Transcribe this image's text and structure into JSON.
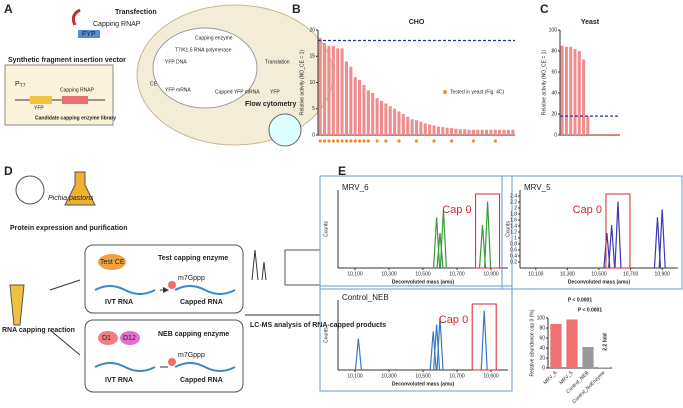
{
  "panels": {
    "a": "A",
    "b": "B",
    "c": "C",
    "d": "D",
    "e": "E"
  },
  "diagram_a": {
    "transfection": "Transfection",
    "capping_rnap": "Capping RNAP",
    "fyp": "FYP",
    "capping_enzyme": "Capping enzyme",
    "polymerase": "T7/K1.5 RNA polymerase",
    "yfp_dna": "YFP DNA",
    "vector": "Synthetic fragment insertion vector",
    "translation": "Translation",
    "yfp": "YFP",
    "capped_mrna": "Capped YFP mRNA",
    "yfp_mrna": "YFP mRNA",
    "ce": "CE",
    "flow": "Flow cytometry",
    "library": "Candidate capping enzyme library",
    "promoter": "P",
    "promoter_sub": "T7",
    "vector_yfp": "YFP",
    "vector_rnap": "Capping RNAP"
  },
  "diagram_d": {
    "organism": "Pichia pastoris",
    "expression": "Protein expression and purification",
    "reaction": "RNA capping reaction",
    "test_ce": "Test CE",
    "test_enzyme": "Test capping enzyme",
    "ivt1": "IVT RNA",
    "cap1": "m7Gppp",
    "capped1": "Capped RNA",
    "d1": "D1",
    "d12": "D12",
    "neb_enzyme": "NEB capping enzyme",
    "ivt2": "IVT RNA",
    "cap2": "m7Gppp",
    "capped2": "Capped RNA",
    "lcms": "LC-MS analysis of RNA-capped products"
  },
  "chart_data": [
    {
      "type": "bar",
      "title": "CHO",
      "ylabel": "Relative activity (NO_CE = 1)",
      "color": "#f08c8c",
      "ylim": [
        0,
        20
      ],
      "yticks": [
        0,
        5,
        10,
        15,
        20
      ],
      "reference_line": 18,
      "legend": "Tested in yeast (Fig. 4C)",
      "marker_color": "#f08c2c",
      "tested": [
        0,
        1,
        2,
        3,
        4,
        5,
        6,
        7,
        8,
        9,
        10,
        11,
        13,
        15,
        18,
        22,
        26,
        30,
        35,
        40
      ],
      "categories": [
        null,
        null,
        null,
        null,
        null,
        null,
        null,
        null,
        null,
        null,
        null,
        null,
        null,
        null,
        null,
        null,
        null,
        null,
        null,
        null,
        null,
        null,
        null,
        null,
        null,
        null,
        null,
        null,
        null,
        null,
        null,
        null,
        null,
        null,
        null,
        null,
        null,
        null,
        null,
        null,
        null,
        null,
        null,
        null,
        null
      ],
      "values": [
        18.5,
        17.5,
        17,
        17,
        16.5,
        16.5,
        14,
        13,
        11,
        10.5,
        9.5,
        8.5,
        8,
        7,
        6.5,
        6,
        5.5,
        5,
        4.5,
        4,
        3.5,
        3,
        2.8,
        2.5,
        2.2,
        2,
        1.8,
        1.6,
        1.5,
        1.4,
        1.3,
        1.2,
        1.1,
        1.1,
        1,
        1,
        1,
        1,
        1,
        1,
        1,
        1,
        1,
        1,
        1
      ]
    },
    {
      "type": "bar",
      "title": "Yeast",
      "ylabel": "Relative activity (NO_CE = 1)",
      "color": "#f08c8c",
      "ylim": [
        0,
        100
      ],
      "yticks": [
        0,
        20,
        40,
        60,
        80,
        100
      ],
      "reference_line": 18,
      "categories": [
        null,
        null,
        null,
        null,
        null,
        null,
        null,
        null,
        null,
        null,
        null,
        null,
        null,
        null
      ],
      "values": [
        85,
        84,
        84,
        82,
        80,
        72,
        18,
        1,
        1,
        1,
        1,
        1,
        1,
        1
      ]
    },
    {
      "type": "bar",
      "ylabel": "Relative abundance cap 0 (%)",
      "colors": [
        "#f07070",
        "#f07070",
        "#999999",
        "#999999"
      ],
      "ylim": [
        0,
        100
      ],
      "yticks": [
        0,
        20,
        40,
        60,
        80,
        100
      ],
      "categories": [
        "MRV_6",
        "MRV_5",
        "Control_NEB",
        "Control_NoEnzyme"
      ],
      "values": [
        88,
        97,
        42,
        1
      ],
      "annotations": [
        "P < 0.0001",
        "P < 0.0001",
        "2.2 fold"
      ]
    }
  ],
  "spectra": [
    {
      "title": "MRV_6",
      "annotation": "Cap 0",
      "ylabel": "Counts",
      "xlabel": "Deconvoluted mass (amu)",
      "xlim": [
        10000,
        11000
      ],
      "xticks": [
        {
          "value": 10100,
          "label": "10,100"
        },
        {
          "value": 10300,
          "label": "10,300"
        },
        {
          "value": 10500,
          "label": "10,500"
        },
        {
          "value": 10700,
          "label": "10,700"
        },
        {
          "value": 10900,
          "label": "10,900"
        }
      ],
      "color": "#3a9a3a"
    },
    {
      "title": "MRV_5",
      "annotation": "Cap 0",
      "ylabel": "Counts",
      "xlabel": "Deconvoluted mass (amu)",
      "xlim": [
        10000,
        11000
      ],
      "xticks": [
        {
          "value": 10100,
          "label": "10,100"
        },
        {
          "value": 10300,
          "label": "10,300"
        },
        {
          "value": 10500,
          "label": "10,500"
        },
        {
          "value": 10700,
          "label": "10,700"
        },
        {
          "value": 10900,
          "label": "10,900"
        }
      ],
      "ylim": [
        0,
        2.6
      ],
      "yticks": [
        0.2,
        0.4,
        0.6,
        0.8,
        1,
        1.2,
        1.4,
        1.6,
        1.8,
        2,
        2.2,
        2.4
      ],
      "color": "#3a3aaa"
    },
    {
      "title": "Control_NEB",
      "annotation": "Cap 0",
      "ylabel": "Counts",
      "xlabel": "Deconvoluted mass (amu)",
      "xlim": [
        10000,
        11000
      ],
      "xticks": [
        {
          "value": 10100,
          "label": "10,100"
        },
        {
          "value": 10300,
          "label": "10,300"
        },
        {
          "value": 10500,
          "label": "10,500"
        },
        {
          "value": 10700,
          "label": "10,700"
        },
        {
          "value": 10900,
          "label": "10,900"
        }
      ],
      "color": "#3a7ac0"
    }
  ]
}
